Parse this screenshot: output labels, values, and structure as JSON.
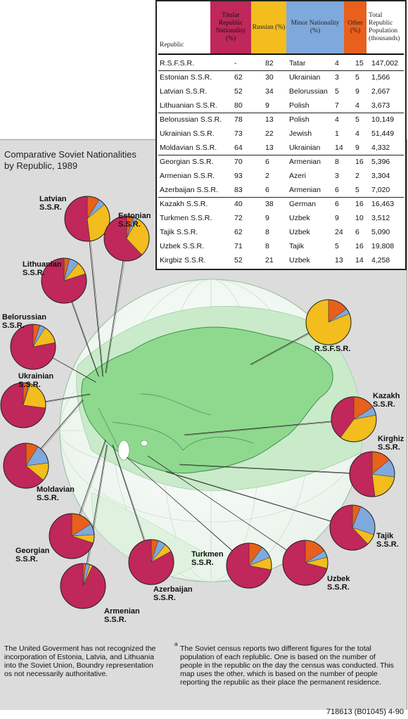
{
  "title_line1": "Comparative Soviet Nationalities",
  "title_line2": "by Republic, 1989",
  "table": {
    "headers": {
      "republic": "Republic",
      "titular": "Titular Republic Nationality (%)",
      "russian": "Russian (%)",
      "minor": "Minor Nationality (%)",
      "other": "Other (%)",
      "total": "Total Republic Population (thousands)"
    },
    "header_colors": {
      "titular": "#c0275a",
      "russian": "#f2bd1d",
      "minor": "#7fa9dc",
      "other": "#e8601c"
    },
    "rows": [
      {
        "republic": "R.S.F.S.R.",
        "titular": "-",
        "russian": "82",
        "minor_name": "Tatar",
        "minor": "4",
        "other": "15",
        "total": "147,002"
      },
      {
        "republic": "Estonian S.S.R.",
        "titular": "62",
        "russian": "30",
        "minor_name": "Ukrainian",
        "minor": "3",
        "other": "5",
        "total": "1,566"
      },
      {
        "republic": "Latvian S.S.R.",
        "titular": "52",
        "russian": "34",
        "minor_name": "Belorussian",
        "minor": "5",
        "other": "9",
        "total": "2,667"
      },
      {
        "republic": "Lithuanian S.S.R.",
        "titular": "80",
        "russian": "9",
        "minor_name": "Polish",
        "minor": "7",
        "other": "4",
        "total": "3,673"
      },
      {
        "republic": "Belorussian S.S.R.",
        "titular": "78",
        "russian": "13",
        "minor_name": "Polish",
        "minor": "4",
        "other": "5",
        "total": "10,149"
      },
      {
        "republic": "Ukrainian S.S.R.",
        "titular": "73",
        "russian": "22",
        "minor_name": "Jewish",
        "minor": "1",
        "other": "4",
        "total": "51,449"
      },
      {
        "republic": "Moldavian S.S.R.",
        "titular": "64",
        "russian": "13",
        "minor_name": "Ukrainian",
        "minor": "14",
        "other": "9",
        "total": "4,332"
      },
      {
        "republic": "Georgian S.S.R.",
        "titular": "70",
        "russian": "6",
        "minor_name": "Armenian",
        "minor": "8",
        "other": "16",
        "total": "5,396"
      },
      {
        "republic": "Armenian S.S.R.",
        "titular": "93",
        "russian": "2",
        "minor_name": "Azeri",
        "minor": "3",
        "other": "2",
        "total": "3,304"
      },
      {
        "republic": "Azerbaijan S.S.R.",
        "titular": "83",
        "russian": "6",
        "minor_name": "Armenian",
        "minor": "6",
        "other": "5",
        "total": "7,020"
      },
      {
        "republic": "Kazakh S.S.R.",
        "titular": "40",
        "russian": "38",
        "minor_name": "German",
        "minor": "6",
        "other": "16",
        "total": "16,463"
      },
      {
        "republic": "Turkmen S.S.R.",
        "titular": "72",
        "russian": "9",
        "minor_name": "Uzbek",
        "minor": "9",
        "other": "10",
        "total": "3,512"
      },
      {
        "republic": "Tajik S.S.R.",
        "titular": "62",
        "russian": "8",
        "minor_name": "Uzbek",
        "minor": "24",
        "other": "6",
        "total": "5,090"
      },
      {
        "republic": "Uzbek S.S.R.",
        "titular": "71",
        "russian": "8",
        "minor_name": "Tajik",
        "minor": "5",
        "other": "16",
        "total": "19,808"
      },
      {
        "republic": "Kirgbiz S.S.R.",
        "titular": "52",
        "russian": "21",
        "minor_name": "Uzbek",
        "minor": "13",
        "other": "14",
        "total": "4,258"
      }
    ]
  },
  "pie_labels": {
    "rsfsr": "R.S.F.S.R.",
    "latvian": "Latvian\nS.S.R.",
    "estonian": "Estonian\nS.S.R.",
    "lithuanian": "Lithuanian\nS.S.R.",
    "belorussian": "Belorussian\nS.S.R.",
    "ukrainian": "Ukrainian\nS.S.R.",
    "moldavian": "Moldavian\nS.S.R.",
    "georgian": "Georgian\nS.S.R.",
    "armenian": "Armenian\nS.S.R.",
    "azerbaijan": "Azerbaijan\nS.S.R.",
    "turkmen": "Turkmen\nS.S.R.",
    "uzbek": "Uzbek\nS.S.R.",
    "tajik": "Tajik\nS.S.R.",
    "kirghiz": "Kirghiz\nS.S.R.",
    "kazakh": "Kazakh\nS.S.R."
  },
  "colors": {
    "titular": "#c0275a",
    "russian": "#f2bd1d",
    "minor": "#7fa9dc",
    "other": "#e8601c",
    "land": "#a6e3a6",
    "ocean": "#ffffff",
    "ussr": "#8fd98f"
  },
  "notes": {
    "left": "The United Goverment has not recognized the incorporation of Estonia, Latvia, and Lithuania into the Soviet Union, Boundry representation os not necessarily authoritative.",
    "footnote_mark": "a",
    "right": "The Soviet census reports two different figures for the total population of each replublic. One is based on the number of people in the republic on the day the census was conducted. This map uses the other, which is based on the number of people reporting the republic as their place the permanent residence."
  },
  "credit": "718613 (B01045) 4-90"
}
